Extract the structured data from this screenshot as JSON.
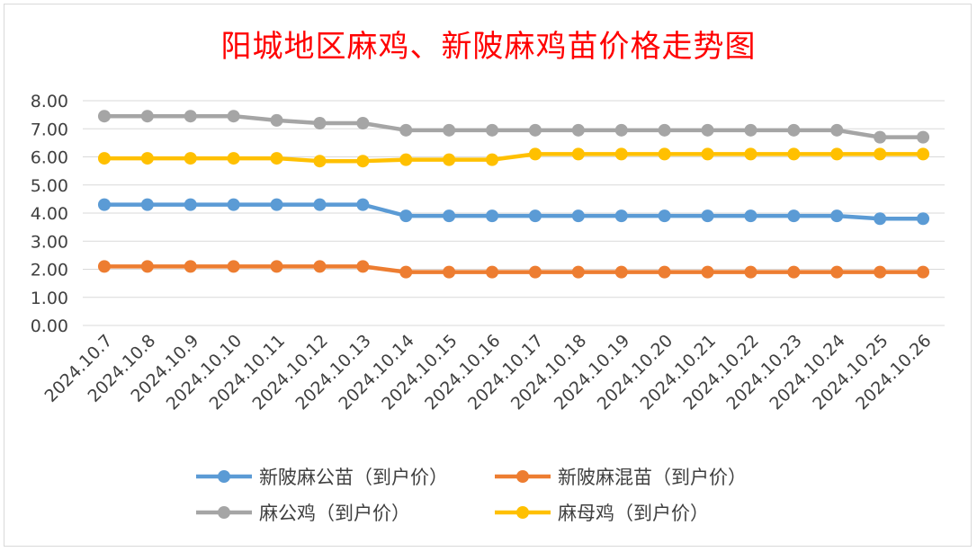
{
  "chart_data": {
    "type": "line",
    "title": "阳城地区麻鸡、新陂麻鸡苗价格走势图",
    "ylim": [
      0,
      8
    ],
    "yticks": [
      "0.00",
      "1.00",
      "2.00",
      "3.00",
      "4.00",
      "5.00",
      "6.00",
      "7.00",
      "8.00"
    ],
    "grid": true,
    "legend_position": "bottom",
    "categories": [
      "2024.10.7",
      "2024.10.8",
      "2024.10.9",
      "2024.10.10",
      "2024.10.11",
      "2024.10.12",
      "2024.10.13",
      "2024.10.14",
      "2024.10.15",
      "2024.10.16",
      "2024.10.17",
      "2024.10.18",
      "2024.10.19",
      "2024.10.20",
      "2024.10.21",
      "2024.10.22",
      "2024.10.23",
      "2024.10.24",
      "2024.10.25",
      "2024.10.26"
    ],
    "series": [
      {
        "name": "新陂麻公苗（到户价）",
        "color": "#5b9bd5",
        "values": [
          4.3,
          4.3,
          4.3,
          4.3,
          4.3,
          4.3,
          4.3,
          3.9,
          3.9,
          3.9,
          3.9,
          3.9,
          3.9,
          3.9,
          3.9,
          3.9,
          3.9,
          3.9,
          3.8,
          3.8
        ]
      },
      {
        "name": "新陂麻混苗（到户价）",
        "color": "#ed7d31",
        "values": [
          2.1,
          2.1,
          2.1,
          2.1,
          2.1,
          2.1,
          2.1,
          1.9,
          1.9,
          1.9,
          1.9,
          1.9,
          1.9,
          1.9,
          1.9,
          1.9,
          1.9,
          1.9,
          1.9,
          1.9
        ]
      },
      {
        "name": "麻公鸡（到户价）",
        "color": "#a5a5a5",
        "values": [
          7.45,
          7.45,
          7.45,
          7.45,
          7.3,
          7.2,
          7.2,
          6.95,
          6.95,
          6.95,
          6.95,
          6.95,
          6.95,
          6.95,
          6.95,
          6.95,
          6.95,
          6.95,
          6.7,
          6.7
        ]
      },
      {
        "name": "麻母鸡（到户价）",
        "color": "#ffc000",
        "values": [
          5.95,
          5.95,
          5.95,
          5.95,
          5.95,
          5.85,
          5.85,
          5.9,
          5.9,
          5.9,
          6.1,
          6.1,
          6.1,
          6.1,
          6.1,
          6.1,
          6.1,
          6.1,
          6.1,
          6.1
        ]
      }
    ]
  }
}
